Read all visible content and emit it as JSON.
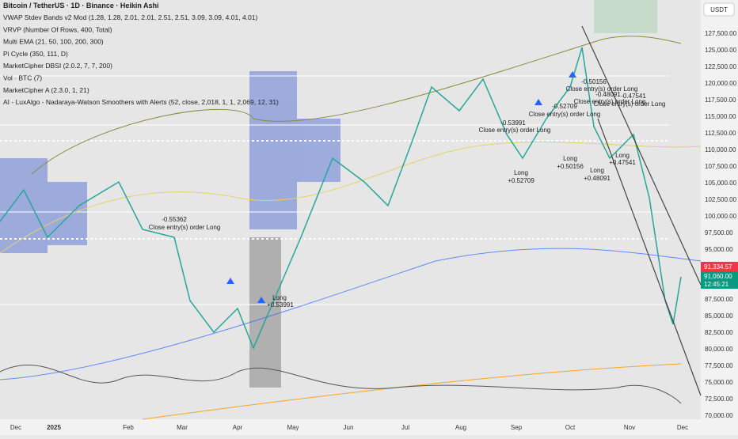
{
  "header": {
    "symbol": "Bitcoin / TetherUS · 1D · Binance · Heikin Ashi",
    "indicators": [
      "VWAP Stdev Bands v2 Mod (1.28, 1.28, 2.01, 2.01, 2.51, 2.51, 3.09, 3.09, 4.01, 4.01)",
      "VRVP (Number Of Rows, 400, Total)",
      "Multi EMA (21, 50, 100, 200, 300)",
      "Pi Cycle (350, 111, D)",
      "MarketCipher DBSI (2.0.2, 7, 7, 200)",
      "Vol · BTC (7)",
      "MarketCipher A (2.3.0, 1, 21)",
      "AI - LuxAlgo - Nadaraya-Watson Smoothers with Alerts (52, close, 2,018, 1, 1, 2,069, 12, 31)"
    ]
  },
  "price_axis": {
    "currency": "USDT",
    "labels": [
      "127,500.00",
      "125,000.00",
      "122,500.00",
      "120,000.00",
      "117,500.00",
      "115,000.00",
      "112,500.00",
      "110,000.00",
      "107,500.00",
      "105,000.00",
      "102,500.00",
      "100,000.00",
      "97,500.00",
      "95,000.00",
      "92,500.00",
      "90,000.00",
      "87,500.00",
      "85,000.00",
      "82,500.00",
      "80,000.00",
      "77,500.00",
      "75,000.00",
      "72,500.00",
      "70,000.00"
    ],
    "last_price": "91,334.57",
    "current_price": "91,060.00",
    "countdown": "12:45:21"
  },
  "time_axis": [
    "Dec",
    "2025",
    "Feb",
    "Mar",
    "Apr",
    "May",
    "Jun",
    "Jul",
    "Aug",
    "Sep",
    "Oct",
    "Nov",
    "Dec"
  ],
  "annotations": [
    "-0.55362",
    "Close entry(s) order Long",
    "Long",
    "+0.53991",
    "-0.53991",
    "Close entry(s) order Long",
    "Long",
    "+0.52709",
    "-0.52709",
    "Close entry(s) order Long",
    "-0.50156",
    "Close entry(s) order Long",
    "Long",
    "+0.50156",
    "-0.48091",
    "Close entry(s) order Long",
    "-0.47541",
    "Close entry(s) order Long",
    "Long",
    "+0.48091",
    "Long",
    "+0.47541"
  ]
}
